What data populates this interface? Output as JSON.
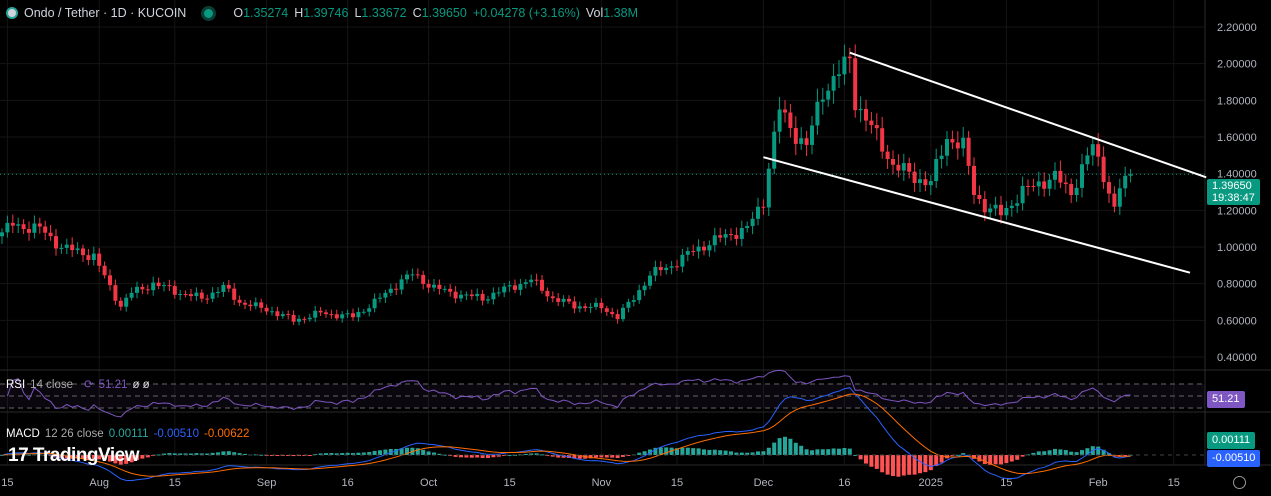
{
  "header": {
    "symbol": "Ondo / Tether · 1D · KUCOIN",
    "open_label": "O",
    "open": "1.35274",
    "high_label": "H",
    "high": "1.39746",
    "low_label": "L",
    "low": "1.33672",
    "close_label": "C",
    "close": "1.39650",
    "change": "+0.04278 (+3.16%)",
    "vol_label": "Vol",
    "vol": "1.38M"
  },
  "price_tag": {
    "price": "1.39650",
    "countdown": "19:38:47"
  },
  "rsi": {
    "name": "RSI",
    "params": "14 close",
    "value": "51.21",
    "extra": "ø ø",
    "tag": "51.21"
  },
  "macd": {
    "name": "MACD",
    "params": "12 26 close",
    "hist": "0.00111",
    "macd": "-0.00510",
    "signal": "-0.00622",
    "tag_hist": "0.00111",
    "tag_macd": "-0.00510"
  },
  "watermark": "TradingView",
  "colors": {
    "up": "#089981",
    "down": "#f23645",
    "rsi": "#7e57c2",
    "macd": "#2962ff",
    "signal": "#ff6d00"
  },
  "chart_data": {
    "type": "candlestick",
    "title": "Ondo / Tether · 1D · KUCOIN",
    "ylim": [
      0.4,
      2.2
    ],
    "y_ticks": [
      "2.20000",
      "2.00000",
      "1.80000",
      "1.60000",
      "1.40000",
      "1.20000",
      "1.00000",
      "0.80000",
      "0.60000",
      "0.40000"
    ],
    "y_tick_values": [
      2.2,
      2.0,
      1.8,
      1.6,
      1.4,
      1.2,
      1.0,
      0.8,
      0.6,
      0.4
    ],
    "x_ticks": [
      {
        "day": 1,
        "label": "15"
      },
      {
        "day": 18,
        "label": "Aug"
      },
      {
        "day": 32,
        "label": "15"
      },
      {
        "day": 49,
        "label": "Sep"
      },
      {
        "day": 64,
        "label": "16"
      },
      {
        "day": 79,
        "label": "Oct"
      },
      {
        "day": 94,
        "label": "15"
      },
      {
        "day": 111,
        "label": "Nov"
      },
      {
        "day": 125,
        "label": "15"
      },
      {
        "day": 141,
        "label": "Dec"
      },
      {
        "day": 156,
        "label": "16"
      },
      {
        "day": 172,
        "label": "2025"
      },
      {
        "day": 186,
        "label": "15"
      },
      {
        "day": 203,
        "label": "Feb"
      },
      {
        "day": 217,
        "label": "15"
      }
    ],
    "close_anchors": [
      [
        0,
        1.08
      ],
      [
        2,
        1.12
      ],
      [
        7,
        1.1
      ],
      [
        11,
        1.0
      ],
      [
        17,
        0.95
      ],
      [
        20,
        0.78
      ],
      [
        22,
        0.68
      ],
      [
        24,
        0.75
      ],
      [
        28,
        0.8
      ],
      [
        33,
        0.75
      ],
      [
        37,
        0.72
      ],
      [
        41,
        0.78
      ],
      [
        44,
        0.7
      ],
      [
        50,
        0.65
      ],
      [
        54,
        0.6
      ],
      [
        59,
        0.64
      ],
      [
        65,
        0.62
      ],
      [
        70,
        0.72
      ],
      [
        74,
        0.82
      ],
      [
        76,
        0.85
      ],
      [
        80,
        0.78
      ],
      [
        83,
        0.75
      ],
      [
        89,
        0.72
      ],
      [
        94,
        0.78
      ],
      [
        98,
        0.82
      ],
      [
        102,
        0.72
      ],
      [
        106,
        0.68
      ],
      [
        111,
        0.67
      ],
      [
        114,
        0.62
      ],
      [
        117,
        0.72
      ],
      [
        120,
        0.85
      ],
      [
        124,
        0.9
      ],
      [
        128,
        0.98
      ],
      [
        133,
        1.05
      ],
      [
        138,
        1.1
      ],
      [
        141,
        1.25
      ],
      [
        142,
        1.45
      ],
      [
        144,
        1.75
      ],
      [
        146,
        1.65
      ],
      [
        149,
        1.55
      ],
      [
        152,
        1.85
      ],
      [
        155,
        1.95
      ],
      [
        157,
        2.02
      ],
      [
        158,
        1.8
      ],
      [
        161,
        1.65
      ],
      [
        165,
        1.45
      ],
      [
        169,
        1.38
      ],
      [
        172,
        1.35
      ],
      [
        175,
        1.6
      ],
      [
        178,
        1.55
      ],
      [
        180,
        1.3
      ],
      [
        182,
        1.22
      ],
      [
        185,
        1.18
      ],
      [
        189,
        1.3
      ],
      [
        192,
        1.35
      ],
      [
        195,
        1.38
      ],
      [
        198,
        1.3
      ],
      [
        202,
        1.55
      ],
      [
        204,
        1.4
      ],
      [
        206,
        1.2
      ],
      [
        207,
        1.32
      ],
      [
        209,
        1.3965
      ]
    ],
    "last_close": 1.3965,
    "trendlines": [
      {
        "name": "channel-upper",
        "from": [
          157,
          2.06
        ],
        "to": [
          223,
          1.38
        ]
      },
      {
        "name": "channel-lower",
        "from": [
          141,
          1.49
        ],
        "to": [
          220,
          0.86
        ]
      }
    ],
    "rsi_levels": [
      70,
      50,
      30
    ]
  }
}
